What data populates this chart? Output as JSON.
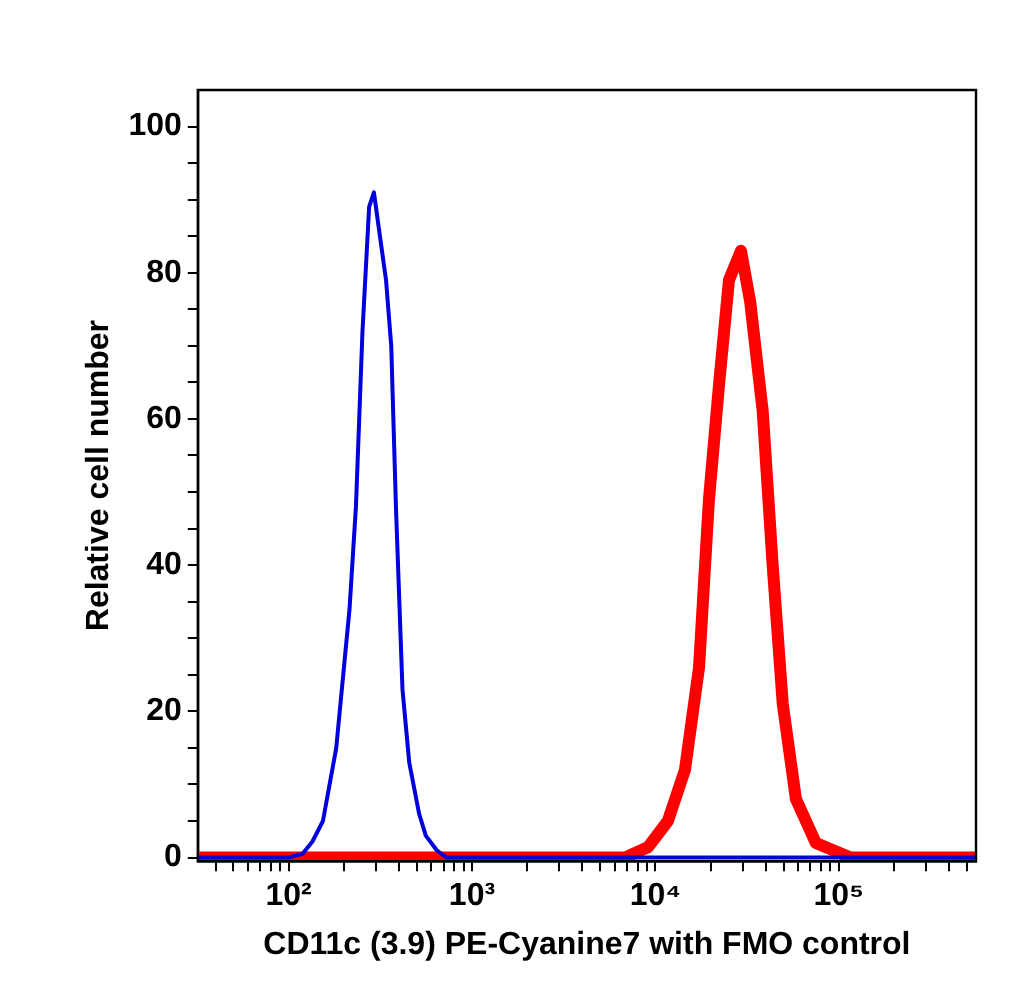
{
  "chart_data": {
    "type": "line",
    "xlabel": "CD11c (3.9) PE-Cyanine7 with FMO control",
    "ylabel": "Relative cell number",
    "log": "x",
    "grid": false,
    "legend": false,
    "marker": "none",
    "line_style": "solid",
    "xlim": [
      32,
      560000
    ],
    "ylim": [
      -0.5,
      105
    ],
    "xticks": [
      {
        "value": 40,
        "label": null
      },
      {
        "value": 50,
        "label": null
      },
      {
        "value": 60,
        "label": null
      },
      {
        "value": 70,
        "label": null
      },
      {
        "value": 80,
        "label": null
      },
      {
        "value": 90,
        "label": null
      },
      {
        "value": 100,
        "label": "10²"
      },
      {
        "value": 200,
        "label": null
      },
      {
        "value": 300,
        "label": null
      },
      {
        "value": 400,
        "label": null
      },
      {
        "value": 500,
        "label": null
      },
      {
        "value": 600,
        "label": null
      },
      {
        "value": 700,
        "label": null
      },
      {
        "value": 800,
        "label": null
      },
      {
        "value": 900,
        "label": null
      },
      {
        "value": 1000,
        "label": "10³"
      },
      {
        "value": 2000,
        "label": null
      },
      {
        "value": 3000,
        "label": null
      },
      {
        "value": 4000,
        "label": null
      },
      {
        "value": 5000,
        "label": null
      },
      {
        "value": 6000,
        "label": null
      },
      {
        "value": 7000,
        "label": null
      },
      {
        "value": 8000,
        "label": null
      },
      {
        "value": 9000,
        "label": null
      },
      {
        "value": 10000,
        "label": "10⁴"
      },
      {
        "value": 20000,
        "label": null
      },
      {
        "value": 30000,
        "label": null
      },
      {
        "value": 40000,
        "label": null
      },
      {
        "value": 50000,
        "label": null
      },
      {
        "value": 60000,
        "label": null
      },
      {
        "value": 70000,
        "label": null
      },
      {
        "value": 80000,
        "label": null
      },
      {
        "value": 90000,
        "label": null
      },
      {
        "value": 100000,
        "label": "10⁵"
      },
      {
        "value": 200000,
        "label": null
      },
      {
        "value": 300000,
        "label": null
      },
      {
        "value": 400000,
        "label": null
      },
      {
        "value": 500000,
        "label": null
      }
    ],
    "yticks": [
      {
        "value": 0,
        "label": "0"
      },
      {
        "value": 5,
        "label": null
      },
      {
        "value": 10,
        "label": null
      },
      {
        "value": 15,
        "label": null
      },
      {
        "value": 20,
        "label": "20"
      },
      {
        "value": 25,
        "label": null
      },
      {
        "value": 30,
        "label": null
      },
      {
        "value": 35,
        "label": null
      },
      {
        "value": 40,
        "label": "40"
      },
      {
        "value": 45,
        "label": null
      },
      {
        "value": 50,
        "label": null
      },
      {
        "value": 55,
        "label": null
      },
      {
        "value": 60,
        "label": "60"
      },
      {
        "value": 65,
        "label": null
      },
      {
        "value": 70,
        "label": null
      },
      {
        "value": 75,
        "label": null
      },
      {
        "value": 80,
        "label": "80"
      },
      {
        "value": 85,
        "label": null
      },
      {
        "value": 90,
        "label": null
      },
      {
        "value": 95,
        "label": null
      },
      {
        "value": 100,
        "label": "100"
      }
    ],
    "series": [
      {
        "color": "#0000dd",
        "x": [
          32,
          100,
          119,
          135,
          154,
          182,
          215,
          233,
          253,
          275,
          292,
          311,
          340,
          363,
          385,
          418,
          455,
          515,
          560,
          643,
          727,
          560000
        ],
        "values": [
          0,
          0,
          0.5,
          2.2,
          5,
          15,
          34,
          48,
          72,
          89,
          91,
          86,
          79,
          70,
          48,
          23,
          13,
          6,
          3,
          1,
          0,
          0
        ]
      },
      {
        "color": "#ff0000",
        "x": [
          32,
          6840,
          9100,
          11700,
          14500,
          17300,
          19600,
          22300,
          25200,
          29300,
          32900,
          38500,
          43600,
          49500,
          58400,
          75000,
          116000,
          560000
        ],
        "values": [
          0,
          0,
          1.4,
          5,
          12,
          26,
          49,
          65,
          79,
          83,
          76,
          61,
          40,
          21,
          8,
          2,
          0,
          0
        ]
      }
    ]
  }
}
